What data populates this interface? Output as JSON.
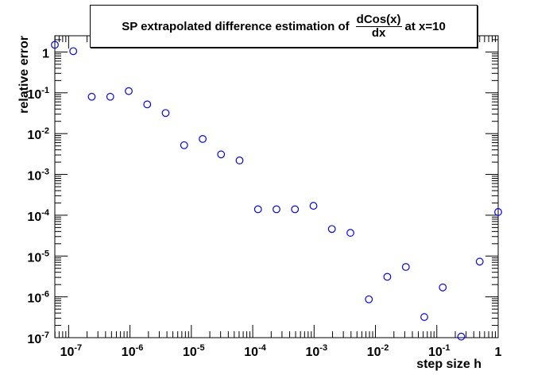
{
  "chart_data": {
    "type": "scatter",
    "title": {
      "prefix": "SP extrapolated difference estimation of",
      "fraction_numerator": "dCos(x)",
      "fraction_denominator": "dx",
      "suffix": "at x=10"
    },
    "xlabel": "step size h",
    "ylabel": "relative error",
    "xscale": "log",
    "yscale": "log",
    "xlim": [
      5.96e-08,
      1.0
    ],
    "ylim": [
      1e-07,
      2.5
    ],
    "grid": false,
    "legend": "none",
    "marker": "open circle",
    "marker_color": "#0000ff",
    "x_tick_labels": [
      {
        "base": "10",
        "exp": "-7"
      },
      {
        "base": "10",
        "exp": "-6"
      },
      {
        "base": "10",
        "exp": "-5"
      },
      {
        "base": "10",
        "exp": "-4"
      },
      {
        "base": "10",
        "exp": "-3"
      },
      {
        "base": "10",
        "exp": "-2"
      },
      {
        "base": "10",
        "exp": "-1"
      },
      {
        "base": "1",
        "exp": ""
      }
    ],
    "y_tick_labels": [
      {
        "base": "10",
        "exp": "-7"
      },
      {
        "base": "10",
        "exp": "-6"
      },
      {
        "base": "10",
        "exp": "-5"
      },
      {
        "base": "10",
        "exp": "-4"
      },
      {
        "base": "10",
        "exp": "-3"
      },
      {
        "base": "10",
        "exp": "-2"
      },
      {
        "base": "10",
        "exp": "-1"
      },
      {
        "base": "1",
        "exp": ""
      }
    ],
    "series": [
      {
        "x": [
          5.96e-08,
          1.19e-07,
          2.38e-07,
          4.77e-07,
          9.54e-07,
          1.91e-06,
          3.81e-06,
          7.63e-06,
          1.53e-05,
          3.05e-05,
          6.1e-05,
          0.000122,
          0.000244,
          0.000488,
          0.000977,
          0.00195,
          0.00391,
          0.00781,
          0.0156,
          0.0313,
          0.0625,
          0.125,
          0.25,
          0.5,
          1.0
        ],
        "y": [
          1.5,
          1.05,
          0.08,
          0.08,
          0.11,
          0.052,
          0.032,
          0.0052,
          0.0074,
          0.0031,
          0.0022,
          0.00014,
          0.00014,
          0.00014,
          0.00017,
          4.6e-05,
          3.7e-05,
          8.7e-07,
          3.1e-06,
          5.4e-06,
          3.2e-07,
          1.7e-06,
          1.06e-07,
          7.3e-06,
          0.00012
        ]
      }
    ]
  }
}
